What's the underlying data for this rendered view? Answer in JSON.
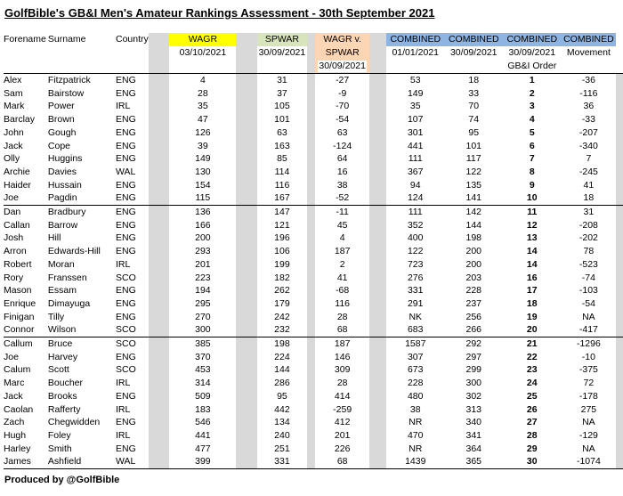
{
  "title": "GolfBible's GB&I Men's Amateur Rankings Assessment - 30th September 2021",
  "footer": "Produced by @GolfBible",
  "colors": {
    "wagr": "#FFFF00",
    "spwar": "#D8E4BC",
    "wvs": "#FBD5B4",
    "combined": "#8DB4E2",
    "spacer": "#D9D9D9",
    "ink": "#000000",
    "paper": "#FFFFFF"
  },
  "header": {
    "forename": "Forename",
    "surname": "Surname",
    "country": "Country",
    "wagr": {
      "label": "WAGR",
      "date": "03/10/2021"
    },
    "spwar": {
      "label": "SPWAR",
      "date": "30/09/2021"
    },
    "wagr_v_spwar": {
      "line1": "WAGR v.",
      "line2": "SPWAR",
      "date": "30/09/2021"
    },
    "combined": [
      {
        "label": "COMBINED",
        "sub": "01/01/2021"
      },
      {
        "label": "COMBINED",
        "sub": "30/09/2021"
      },
      {
        "label": "COMBINED",
        "sub": "30/09/2021",
        "sub2": "GB&I Order"
      },
      {
        "label": "COMBINED",
        "sub": "Movement"
      }
    ]
  },
  "group_breaks_after": [
    10,
    20,
    30
  ],
  "rows": [
    [
      "Alex",
      "Fitzpatrick",
      "ENG",
      "4",
      "31",
      "-27",
      "53",
      "18",
      "1",
      "-36"
    ],
    [
      "Sam",
      "Bairstow",
      "ENG",
      "28",
      "37",
      "-9",
      "149",
      "33",
      "2",
      "-116"
    ],
    [
      "Mark",
      "Power",
      "IRL",
      "35",
      "105",
      "-70",
      "35",
      "70",
      "3",
      "36"
    ],
    [
      "Barclay",
      "Brown",
      "ENG",
      "47",
      "101",
      "-54",
      "107",
      "74",
      "4",
      "-33"
    ],
    [
      "John",
      "Gough",
      "ENG",
      "126",
      "63",
      "63",
      "301",
      "95",
      "5",
      "-207"
    ],
    [
      "Jack",
      "Cope",
      "ENG",
      "39",
      "163",
      "-124",
      "441",
      "101",
      "6",
      "-340"
    ],
    [
      "Olly",
      "Huggins",
      "ENG",
      "149",
      "85",
      "64",
      "111",
      "117",
      "7",
      "7"
    ],
    [
      "Archie",
      "Davies",
      "WAL",
      "130",
      "114",
      "16",
      "367",
      "122",
      "8",
      "-245"
    ],
    [
      "Haider",
      "Hussain",
      "ENG",
      "154",
      "116",
      "38",
      "94",
      "135",
      "9",
      "41"
    ],
    [
      "Joe",
      "Pagdin",
      "ENG",
      "115",
      "167",
      "-52",
      "124",
      "141",
      "10",
      "18"
    ],
    [
      "Dan",
      "Bradbury",
      "ENG",
      "136",
      "147",
      "-11",
      "111",
      "142",
      "11",
      "31"
    ],
    [
      "Callan",
      "Barrow",
      "ENG",
      "166",
      "121",
      "45",
      "352",
      "144",
      "12",
      "-208"
    ],
    [
      "Josh",
      "Hill",
      "ENG",
      "200",
      "196",
      "4",
      "400",
      "198",
      "13",
      "-202"
    ],
    [
      "Arron",
      "Edwards-Hill",
      "ENG",
      "293",
      "106",
      "187",
      "122",
      "200",
      "14",
      "78"
    ],
    [
      "Robert",
      "Moran",
      "IRL",
      "201",
      "199",
      "2",
      "723",
      "200",
      "14",
      "-523"
    ],
    [
      "Rory",
      "Franssen",
      "SCO",
      "223",
      "182",
      "41",
      "276",
      "203",
      "16",
      "-74"
    ],
    [
      "Mason",
      "Essam",
      "ENG",
      "194",
      "262",
      "-68",
      "331",
      "228",
      "17",
      "-103"
    ],
    [
      "Enrique",
      "Dimayuga",
      "ENG",
      "295",
      "179",
      "116",
      "291",
      "237",
      "18",
      "-54"
    ],
    [
      "Finigan",
      "Tilly",
      "ENG",
      "270",
      "242",
      "28",
      "NK",
      "256",
      "19",
      "NA"
    ],
    [
      "Connor",
      "Wilson",
      "SCO",
      "300",
      "232",
      "68",
      "683",
      "266",
      "20",
      "-417"
    ],
    [
      "Callum",
      "Bruce",
      "SCO",
      "385",
      "198",
      "187",
      "1587",
      "292",
      "21",
      "-1296"
    ],
    [
      "Joe",
      "Harvey",
      "ENG",
      "370",
      "224",
      "146",
      "307",
      "297",
      "22",
      "-10"
    ],
    [
      "Calum",
      "Scott",
      "SCO",
      "453",
      "144",
      "309",
      "673",
      "299",
      "23",
      "-375"
    ],
    [
      "Marc",
      "Boucher",
      "IRL",
      "314",
      "286",
      "28",
      "228",
      "300",
      "24",
      "72"
    ],
    [
      "Jack",
      "Brooks",
      "ENG",
      "509",
      "95",
      "414",
      "480",
      "302",
      "25",
      "-178"
    ],
    [
      "Caolan",
      "Rafferty",
      "IRL",
      "183",
      "442",
      "-259",
      "38",
      "313",
      "26",
      "275"
    ],
    [
      "Zach",
      "Chegwidden",
      "ENG",
      "546",
      "134",
      "412",
      "NR",
      "340",
      "27",
      "NA"
    ],
    [
      "Hugh",
      "Foley",
      "IRL",
      "441",
      "240",
      "201",
      "470",
      "341",
      "28",
      "-129"
    ],
    [
      "Harley",
      "Smith",
      "ENG",
      "477",
      "251",
      "226",
      "NR",
      "364",
      "29",
      "NA"
    ],
    [
      "James",
      "Ashfield",
      "WAL",
      "399",
      "331",
      "68",
      "1439",
      "365",
      "30",
      "-1074"
    ]
  ]
}
